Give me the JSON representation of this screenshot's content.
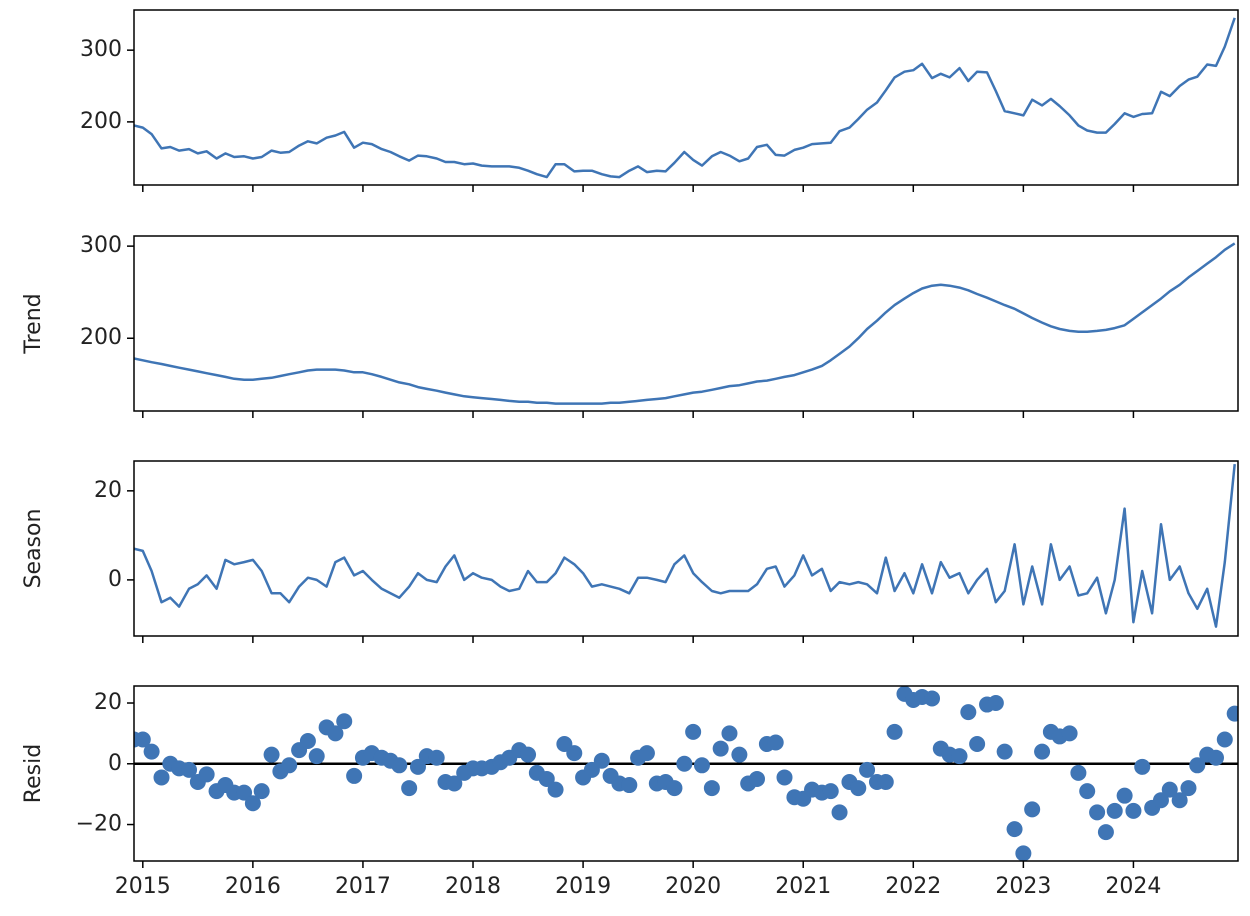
{
  "chart_data": {
    "type": "decomposition",
    "x": [
      2014.92,
      2015,
      2015.08,
      2015.17,
      2015.25,
      2015.33,
      2015.42,
      2015.5,
      2015.58,
      2015.67,
      2015.75,
      2015.83,
      2015.92,
      2016,
      2016.08,
      2016.17,
      2016.25,
      2016.33,
      2016.42,
      2016.5,
      2016.58,
      2016.67,
      2016.75,
      2016.83,
      2016.92,
      2017,
      2017.08,
      2017.17,
      2017.25,
      2017.33,
      2017.42,
      2017.5,
      2017.58,
      2017.67,
      2017.75,
      2017.83,
      2017.92,
      2018,
      2018.08,
      2018.17,
      2018.25,
      2018.33,
      2018.42,
      2018.5,
      2018.58,
      2018.67,
      2018.75,
      2018.83,
      2018.92,
      2019,
      2019.08,
      2019.17,
      2019.25,
      2019.33,
      2019.42,
      2019.5,
      2019.58,
      2019.67,
      2019.75,
      2019.83,
      2019.92,
      2020,
      2020.08,
      2020.17,
      2020.25,
      2020.33,
      2020.42,
      2020.5,
      2020.58,
      2020.67,
      2020.75,
      2020.83,
      2020.92,
      2021,
      2021.08,
      2021.17,
      2021.25,
      2021.33,
      2021.42,
      2021.5,
      2021.58,
      2021.67,
      2021.75,
      2021.83,
      2021.92,
      2022,
      2022.08,
      2022.17,
      2022.25,
      2022.33,
      2022.42,
      2022.5,
      2022.58,
      2022.67,
      2022.75,
      2022.83,
      2022.92,
      2023,
      2023.08,
      2023.17,
      2023.25,
      2023.33,
      2023.42,
      2023.5,
      2023.58,
      2023.67,
      2023.75,
      2023.83,
      2023.92,
      2024,
      2024.08,
      2024.17,
      2024.25,
      2024.33,
      2024.42,
      2024.5,
      2024.58,
      2024.67,
      2024.75,
      2024.83,
      2024.92
    ],
    "xlim": [
      2014.92,
      2024.95
    ],
    "xticks": [
      2015,
      2016,
      2017,
      2018,
      2019,
      2020,
      2021,
      2022,
      2023,
      2024
    ],
    "color": "#3f75b5",
    "panels": [
      {
        "type": "line",
        "ylim": [
          112,
          356
        ],
        "yticks": [
          200,
          300
        ],
        "values": [
          195,
          192,
          183,
          163,
          165,
          160,
          162,
          156,
          159,
          149,
          156,
          151,
          152,
          149,
          151,
          160,
          157,
          158,
          167,
          173,
          170,
          178,
          181,
          186,
          164,
          171,
          169,
          162,
          158,
          152,
          146,
          153,
          152,
          149,
          144,
          144,
          141,
          142,
          139,
          138,
          138,
          138,
          136,
          132,
          127,
          123,
          141,
          141,
          131,
          132,
          132,
          127,
          124,
          123,
          132,
          138,
          130,
          132,
          131,
          143,
          158,
          147,
          139,
          152,
          158,
          153,
          145,
          149,
          165,
          168,
          154,
          153,
          161,
          164,
          169,
          170,
          171,
          187,
          192,
          204,
          217,
          227,
          244,
          262,
          270,
          272,
          281,
          261,
          267,
          262,
          275,
          257,
          270,
          269,
          243,
          215,
          212,
          209,
          231,
          223,
          232,
          222,
          209,
          195,
          188,
          185,
          185,
          197,
          212,
          207,
          211,
          212,
          242,
          236,
          250,
          259,
          263,
          280,
          278,
          305,
          345
        ]
      },
      {
        "type": "line",
        "ylabel": "Trend",
        "ylim": [
          121,
          311
        ],
        "yticks": [
          200,
          300
        ],
        "values": [
          178,
          176,
          174,
          172,
          170,
          168,
          166,
          164,
          162,
          160,
          158,
          156,
          155,
          155,
          156,
          157,
          159,
          161,
          163,
          165,
          166,
          166,
          166,
          165,
          163,
          163,
          161,
          158,
          155,
          152,
          150,
          147,
          145,
          143,
          141,
          139,
          137,
          136,
          135,
          134,
          133,
          132,
          131,
          131,
          130,
          130,
          129,
          129,
          129,
          129,
          129,
          129,
          130,
          130,
          131,
          132,
          133,
          134,
          135,
          137,
          139,
          141,
          142,
          144,
          146,
          148,
          149,
          151,
          153,
          154,
          156,
          158,
          160,
          163,
          166,
          170,
          176,
          183,
          191,
          200,
          210,
          219,
          228,
          236,
          243,
          249,
          254,
          257,
          258,
          257,
          255,
          252,
          248,
          244,
          240,
          236,
          232,
          227,
          222,
          217,
          213,
          210,
          208,
          207,
          207,
          208,
          209,
          211,
          214,
          221,
          228,
          236,
          243,
          251,
          258,
          266,
          273,
          281,
          288,
          296,
          303
        ]
      },
      {
        "type": "line",
        "ylabel": "Season",
        "ylim": [
          -12.6,
          26.7
        ],
        "yticks": [
          0,
          20
        ],
        "values": [
          7,
          6.5,
          2,
          -5,
          -4,
          -6,
          -2,
          -1,
          1,
          -2,
          4.5,
          3.5,
          4,
          4.5,
          2,
          -3,
          -3,
          -5,
          -1.5,
          0.5,
          0,
          -1.5,
          4,
          5,
          1,
          2,
          0,
          -2,
          -3,
          -4,
          -1.5,
          1.5,
          0,
          -0.5,
          3,
          5.5,
          0,
          1.5,
          0.5,
          0,
          -1.5,
          -2.5,
          -2,
          2,
          -0.5,
          -0.5,
          1.5,
          5,
          3.5,
          1.5,
          -1.5,
          -1,
          -1.5,
          -2,
          -3,
          0.5,
          0.5,
          0,
          -0.5,
          3.5,
          5.5,
          1.5,
          -0.5,
          -2.5,
          -3,
          -2.5,
          -2.5,
          -2.5,
          -1,
          2.5,
          3,
          -1.5,
          1,
          5.5,
          1,
          2.5,
          -2.5,
          -0.5,
          -1,
          -0.5,
          -1,
          -3,
          5,
          -2.5,
          1.5,
          -3,
          3.5,
          -3,
          4,
          0.5,
          1.5,
          -3,
          0,
          2.5,
          -5,
          -2.5,
          8,
          -5.5,
          3,
          -5.5,
          8,
          0,
          3,
          -3.5,
          -3,
          0.5,
          -7.5,
          0,
          16,
          -9.5,
          2,
          -7.5,
          12.5,
          0,
          3,
          -3,
          -6.5,
          -2,
          -10.5,
          4,
          26
        ]
      },
      {
        "type": "scatter",
        "ylabel": "Resid",
        "ylim": [
          -32,
          25.6
        ],
        "yticks": [
          {
            "value": -20,
            "label": "−20"
          },
          0,
          20
        ],
        "hline": 0,
        "values": [
          8,
          8,
          4,
          -4.5,
          0,
          -1.5,
          -2,
          -6,
          -3.5,
          -9,
          -7,
          -9.5,
          -9.5,
          -13,
          -9,
          3,
          -2.5,
          -0.5,
          4.5,
          7.5,
          2.5,
          12,
          10,
          14,
          -4,
          2,
          3.5,
          2,
          1,
          -0.5,
          -8,
          -1,
          2.5,
          2,
          -6,
          -6.5,
          -3,
          -1.5,
          -1.5,
          -1,
          0.5,
          2,
          4.5,
          3,
          -3,
          -5,
          -8.5,
          6.5,
          3.5,
          -4.5,
          -2,
          1,
          -4,
          -6.5,
          -7,
          2,
          3.5,
          -6.5,
          -6,
          -8,
          0,
          10.5,
          -0.5,
          -8,
          5,
          10,
          3,
          -6.5,
          -5,
          6.5,
          7,
          -4.5,
          -11,
          -11.5,
          -8.5,
          -9.5,
          -9,
          -16,
          -6,
          -8,
          -2,
          -6,
          -6,
          10.5,
          23,
          21,
          22,
          21.5,
          5,
          3,
          2.5,
          17,
          6.5,
          19.5,
          20,
          4,
          -21.5,
          -29.5,
          -15,
          4,
          10.5,
          9,
          10,
          -3,
          -9,
          -16,
          -22.5,
          -15.5,
          -10.5,
          -15.5,
          -1,
          -14.5,
          -12,
          -8.5,
          -12,
          -8,
          -0.5,
          3,
          2,
          8,
          16.5
        ]
      }
    ]
  }
}
